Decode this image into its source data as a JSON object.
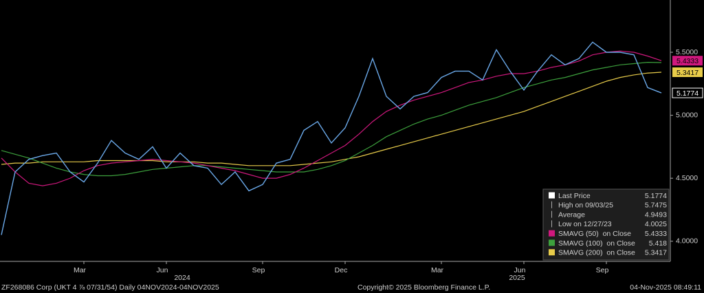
{
  "chart_data": {
    "type": "line",
    "categories": [
      null,
      null,
      null,
      null,
      null,
      null,
      "Mar",
      null,
      null,
      null,
      null,
      null,
      "Jun",
      null,
      null,
      null,
      null,
      null,
      null,
      "Sep",
      null,
      null,
      null,
      null,
      null,
      "Dec",
      null,
      null,
      null,
      null,
      null,
      null,
      "Mar",
      null,
      null,
      null,
      null,
      null,
      "Jun",
      null,
      null,
      null,
      null,
      null,
      "Sep",
      null,
      null,
      null,
      null
    ],
    "annotations": [
      "2024",
      "2025"
    ],
    "series": [
      {
        "name": "Last Price",
        "color": "#6aa8e8",
        "values": [
          4.05,
          4.55,
          4.65,
          4.68,
          4.7,
          4.55,
          4.47,
          4.62,
          4.8,
          4.7,
          4.65,
          4.75,
          4.58,
          4.7,
          4.6,
          4.58,
          4.45,
          4.55,
          4.4,
          4.45,
          4.62,
          4.65,
          4.88,
          4.95,
          4.78,
          4.9,
          5.15,
          5.45,
          5.15,
          5.05,
          5.15,
          5.18,
          5.3,
          5.35,
          5.35,
          5.28,
          5.52,
          5.35,
          5.2,
          5.35,
          5.48,
          5.4,
          5.45,
          5.58,
          5.5,
          5.5,
          5.48,
          5.22,
          5.1774
        ]
      },
      {
        "name": "SMAVG (50)  on Close",
        "color": "#d0187e",
        "values": [
          4.66,
          4.55,
          4.46,
          4.44,
          4.46,
          4.5,
          4.56,
          4.6,
          4.62,
          4.63,
          4.64,
          4.65,
          4.64,
          4.63,
          4.62,
          4.6,
          4.58,
          4.56,
          4.53,
          4.5,
          4.5,
          4.53,
          4.58,
          4.64,
          4.7,
          4.76,
          4.85,
          4.95,
          5.03,
          5.08,
          5.12,
          5.15,
          5.18,
          5.22,
          5.26,
          5.28,
          5.31,
          5.33,
          5.33,
          5.35,
          5.38,
          5.4,
          5.43,
          5.48,
          5.5,
          5.51,
          5.5,
          5.47,
          5.4333
        ]
      },
      {
        "name": "SMAVG (100)  on Close",
        "color": "#3da13d",
        "values": [
          4.72,
          4.69,
          4.66,
          4.62,
          4.58,
          4.55,
          4.53,
          4.52,
          4.52,
          4.53,
          4.55,
          4.57,
          4.58,
          4.59,
          4.6,
          4.6,
          4.59,
          4.58,
          4.57,
          4.56,
          4.55,
          4.55,
          4.55,
          4.57,
          4.6,
          4.64,
          4.7,
          4.76,
          4.83,
          4.88,
          4.93,
          4.97,
          5.0,
          5.04,
          5.08,
          5.11,
          5.14,
          5.18,
          5.22,
          5.25,
          5.28,
          5.3,
          5.33,
          5.36,
          5.38,
          5.4,
          5.41,
          5.42,
          5.418
        ]
      },
      {
        "name": "SMAVG (200)  on Close",
        "color": "#e8cc4a",
        "values": [
          4.61,
          4.62,
          4.62,
          4.63,
          4.63,
          4.63,
          4.63,
          4.64,
          4.64,
          4.64,
          4.64,
          4.64,
          4.63,
          4.63,
          4.63,
          4.62,
          4.62,
          4.61,
          4.6,
          4.6,
          4.6,
          4.6,
          4.61,
          4.62,
          4.63,
          4.65,
          4.67,
          4.7,
          4.73,
          4.76,
          4.79,
          4.82,
          4.85,
          4.88,
          4.91,
          4.94,
          4.97,
          5.0,
          5.03,
          5.07,
          5.11,
          5.15,
          5.19,
          5.23,
          5.27,
          5.3,
          5.32,
          5.335,
          5.3417
        ]
      }
    ],
    "stats": [
      {
        "label": "High on 09/03/25",
        "value": 5.7475
      },
      {
        "label": "Average",
        "value": 4.9493
      },
      {
        "label": "Low on 12/27/23",
        "value": 4.0025
      }
    ],
    "ylim": [
      3.84,
      5.915
    ],
    "yticks": [
      {
        "value": 4,
        "label": "4.0000"
      },
      {
        "value": 4.5,
        "label": "4.5000"
      },
      {
        "value": 5,
        "label": "5.0000"
      },
      {
        "value": 5.5,
        "label": "5.5000"
      }
    ],
    "grid": false,
    "legend": "bottom-right"
  },
  "footer": {
    "security": "ZF268086 Corp (UKT 4 ⅞ 07/31/54) Daily 04NOV2024-04NOV2025",
    "copyright": "Copyright© 2025 Bloomberg Finance L.P.",
    "timestamp": "04-Nov-2025 08:49:11"
  }
}
